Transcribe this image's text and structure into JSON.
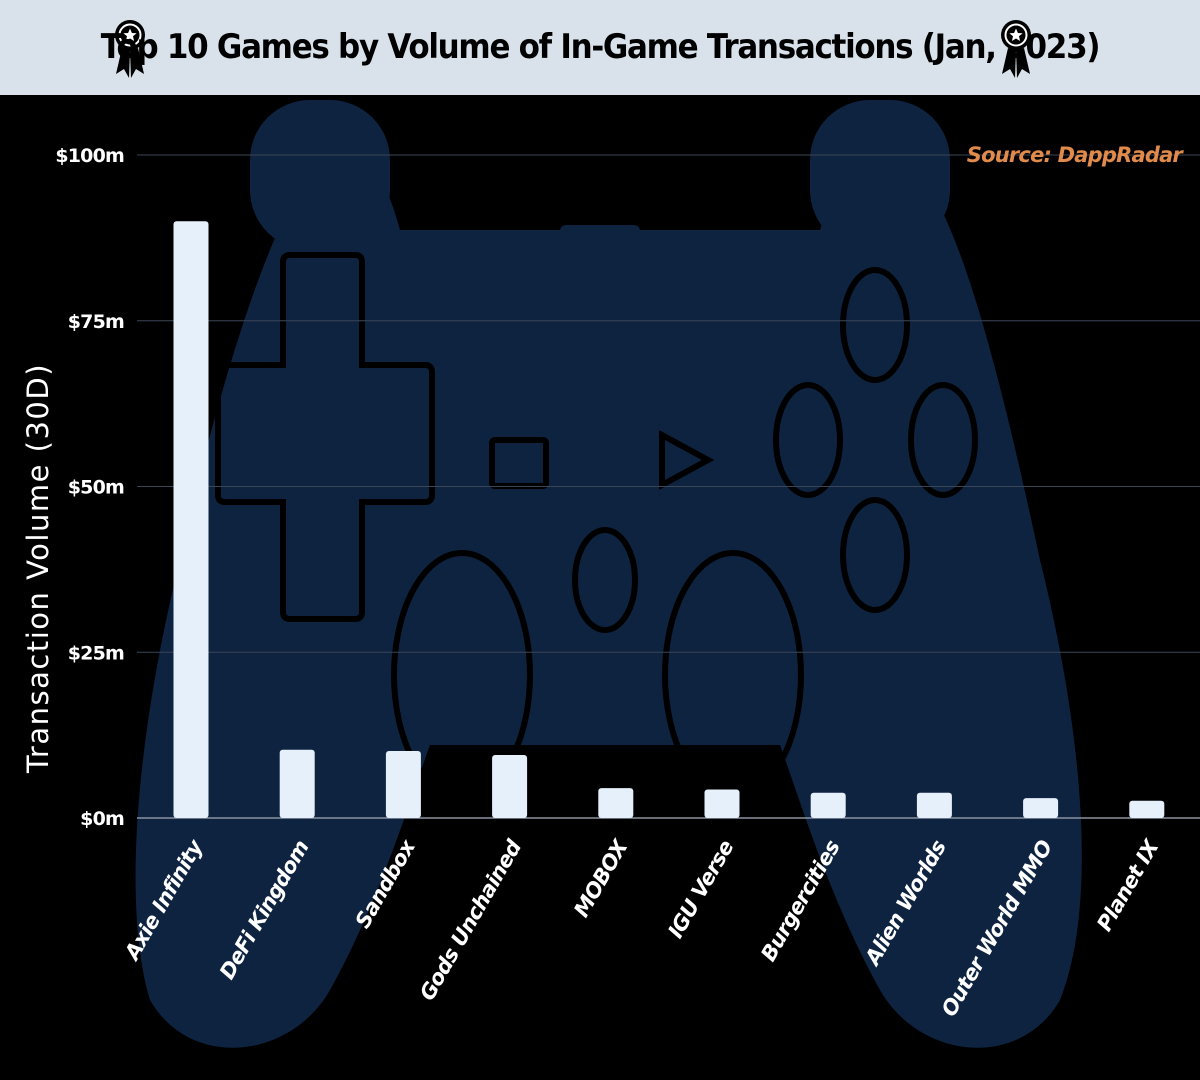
{
  "header": {
    "title": "Top 10 Games by Volume of In-Game Transactions (Jan, 2023)",
    "icon_left": "award-ribbon-icon",
    "icon_right": "award-ribbon-icon"
  },
  "source": "Source: DappRadar",
  "background": {
    "icon": "gamepad-controller-icon",
    "color": "#0e2340"
  },
  "colors": {
    "bar": "#e6f0fb",
    "header_bg": "#d9e2ea",
    "page_bg": "#000000",
    "source_text": "#e08a4c"
  },
  "chart_data": {
    "type": "bar",
    "title": "Top 10 Games by Volume of In-Game Transactions (Jan, 2023)",
    "ylabel": "Transaction Volume (30D)",
    "xlabel": "",
    "categories": [
      "Axie Infinity",
      "DeFi Kingdom",
      "Sandbox",
      "Gods Unchained",
      "MOBOX",
      "IGU Verse",
      "Burgercities",
      "Alien Worlds",
      "Outer World MMO",
      "Planet IX"
    ],
    "values": [
      90,
      10.3,
      10.1,
      9.5,
      4.5,
      4.3,
      3.8,
      3.8,
      3.0,
      2.6
    ],
    "unit": "millions USD",
    "ylim": [
      0,
      100
    ],
    "yticks": [
      0,
      25,
      50,
      75,
      100
    ],
    "ytick_labels": [
      "$0m",
      "$25m",
      "$50m",
      "$75m",
      "$100m"
    ],
    "grid": true,
    "legend": "none"
  }
}
